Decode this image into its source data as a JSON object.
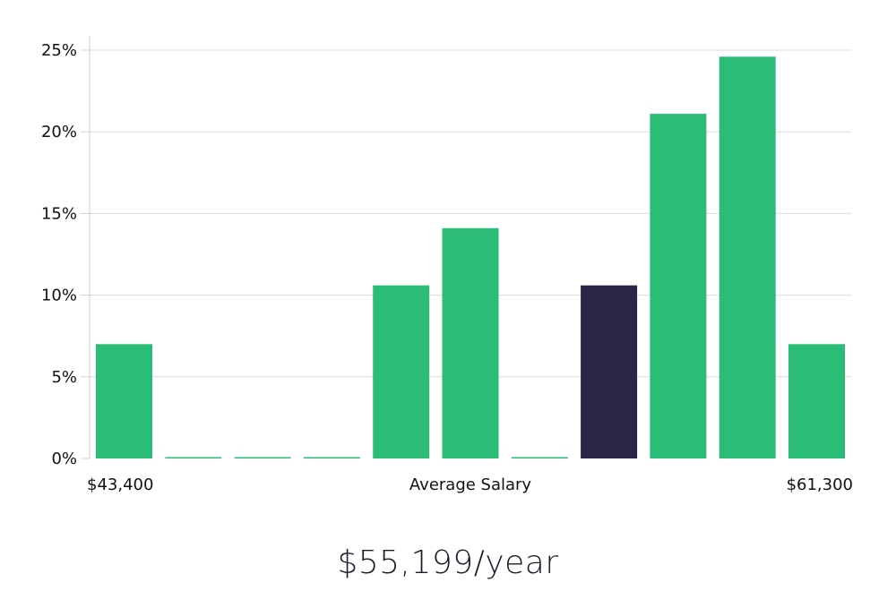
{
  "chart_data": {
    "type": "bar",
    "y_unit": "%",
    "ylim": [
      0,
      26
    ],
    "yticks": [
      0,
      5,
      10,
      15,
      20,
      25
    ],
    "ytick_labels": [
      "0%",
      "5%",
      "10%",
      "15%",
      "20%",
      "25%"
    ],
    "grid": true,
    "values": [
      7.0,
      0,
      0,
      0,
      10.6,
      14.1,
      0,
      10.6,
      21.1,
      24.6,
      7.0
    ],
    "highlight_index": 7,
    "x_min_label": "$43,400",
    "x_center_label": "Average Salary",
    "x_max_label": "$61,300",
    "colors": {
      "bar": "#2bbd77",
      "highlight": "#282546",
      "grid": "#dcdcdc",
      "axis": "#cfcfcf"
    }
  },
  "headline": "$55,199/year"
}
